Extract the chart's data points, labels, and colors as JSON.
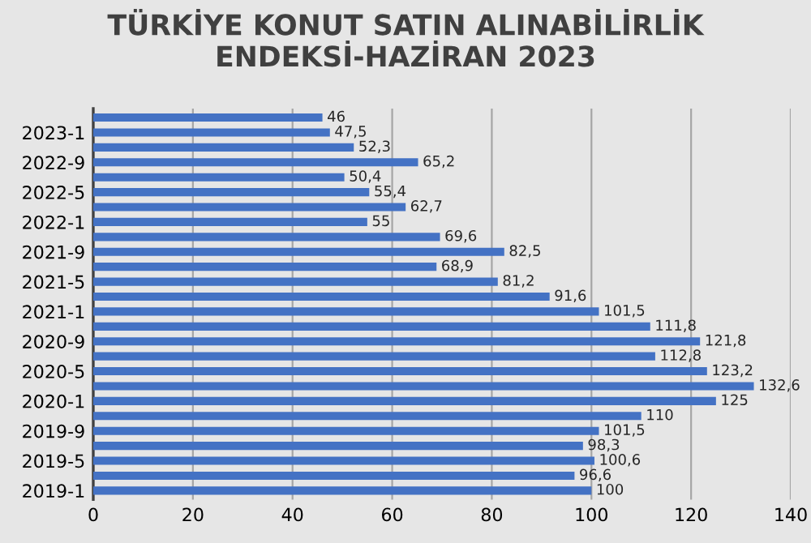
{
  "chart_data": {
    "type": "bar",
    "orientation": "horizontal",
    "title": "TÜRKİYE KONUT SATIN ALINABİLİRLİK\nENDEKSİ-HAZİRAN 2023",
    "categories": [
      null,
      "2023-1",
      null,
      "2022-9",
      null,
      "2022-5",
      null,
      "2022-1",
      null,
      "2021-9",
      null,
      "2021-5",
      null,
      "2021-1",
      null,
      "2020-9",
      null,
      "2020-5",
      null,
      "2020-1",
      null,
      "2019-9",
      null,
      "2019-5",
      null,
      "2019-1"
    ],
    "values": [
      46,
      47.5,
      52.3,
      65.2,
      50.4,
      55.4,
      62.7,
      55,
      69.6,
      82.5,
      68.9,
      81.2,
      91.6,
      101.5,
      111.8,
      121.8,
      112.8,
      123.2,
      132.6,
      125,
      110,
      101.5,
      98.3,
      100.6,
      96.6,
      100
    ],
    "value_labels": [
      "46",
      "47,5",
      "52,3",
      "65,2",
      "50,4",
      "55,4",
      "62,7",
      "55",
      "69,6",
      "82,5",
      "68,9",
      "81,2",
      "91,6",
      "101,5",
      "111,8",
      "121,8",
      "112,8",
      "123,2",
      "132,6",
      "125",
      "110",
      "101,5",
      "98,3",
      "100,6",
      "96,6",
      "100"
    ],
    "color": "#4472c4",
    "xlim": [
      0,
      140
    ],
    "xticks": [
      0,
      20,
      40,
      60,
      80,
      100,
      120,
      140
    ],
    "grid": "x"
  }
}
